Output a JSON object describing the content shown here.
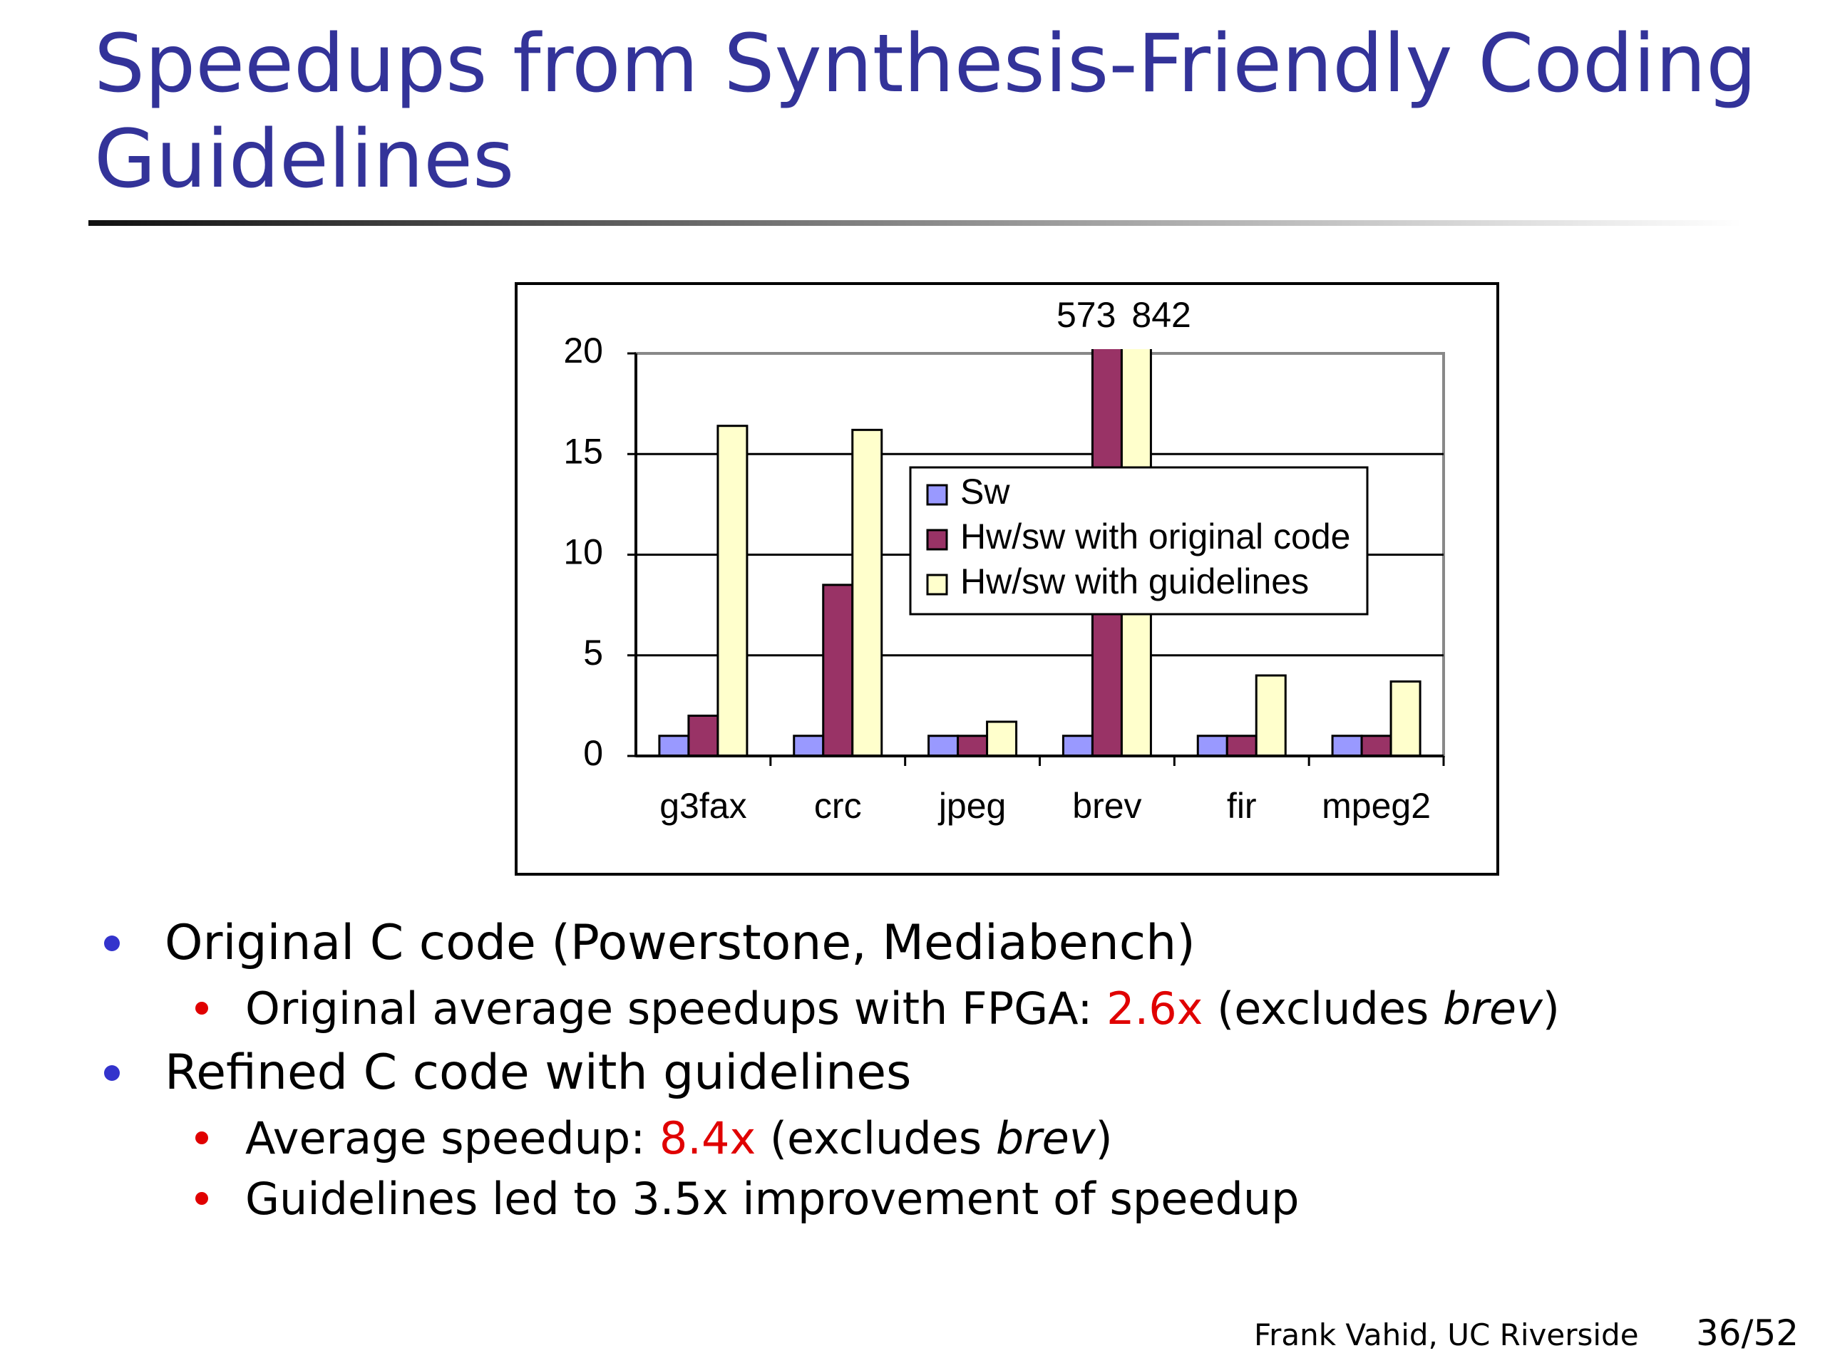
{
  "title": [
    "Speedups from Synthesis-Friendly Coding",
    "Guidelines"
  ],
  "chart_data": {
    "type": "bar",
    "categories": [
      "g3fax",
      "crc",
      "jpeg",
      "brev",
      "fir",
      "mpeg2"
    ],
    "series": [
      {
        "name": "Sw",
        "color": "#9999ff",
        "values": [
          1,
          1,
          1,
          1,
          1,
          1
        ]
      },
      {
        "name": "Hw/sw with original code",
        "color": "#993366",
        "values": [
          2,
          8.5,
          1,
          573,
          1,
          1
        ],
        "value_labels": [
          null,
          null,
          null,
          "573",
          null,
          null
        ]
      },
      {
        "name": "Hw/sw with guidelines",
        "color": "#ffffcc",
        "values": [
          16.4,
          16.2,
          1.7,
          842,
          4,
          3.7
        ],
        "value_labels": [
          null,
          null,
          null,
          "842",
          null,
          null
        ]
      }
    ],
    "ylim": [
      0,
      20
    ],
    "yticks": [
      0,
      5,
      10,
      15,
      20
    ],
    "grid": true,
    "legend": "upper right"
  },
  "bullets": [
    {
      "parts": [
        {
          "text": "Original C code (Powerstone, Mediabench)"
        }
      ],
      "sub": [
        [
          {
            "text": "Original average speedups with FPGA:  "
          },
          {
            "text": "2.6x",
            "color": "#e00000"
          },
          {
            "text": " (excludes "
          },
          {
            "text": "brev",
            "italic": true
          },
          {
            "text": ")"
          }
        ]
      ]
    },
    {
      "parts": [
        {
          "text": "Refined C code with guidelines"
        }
      ],
      "sub": [
        [
          {
            "text": "Average speedup: "
          },
          {
            "text": "8.4x",
            "color": "#e00000"
          },
          {
            "text": " (excludes "
          },
          {
            "text": "brev",
            "italic": true
          },
          {
            "text": ")"
          }
        ],
        [
          {
            "text": "Guidelines led to 3.5x improvement of speedup"
          }
        ]
      ]
    }
  ],
  "footer": {
    "author": "Frank Vahid, UC Riverside",
    "page": "36/52"
  }
}
